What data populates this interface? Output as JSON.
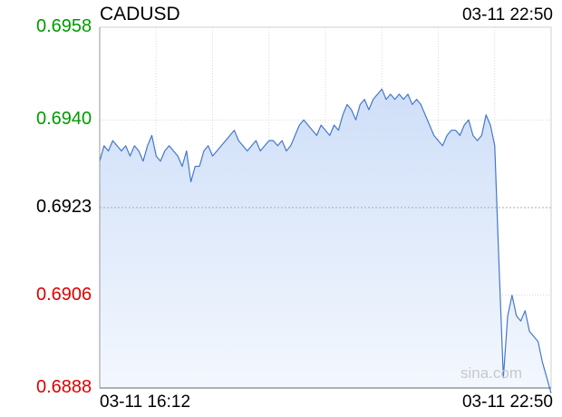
{
  "header": {
    "symbol": "CADUSD",
    "datetime": "03-11 22:50"
  },
  "watermark": "sina.com",
  "colors": {
    "up": "#009900",
    "down": "#dd0000",
    "neutral": "#000000",
    "line": "#4477cc",
    "fill_top": "#cfdff8",
    "fill_bottom": "#f4f8fe"
  },
  "chart_data": {
    "type": "area",
    "symbol": "CADUSD",
    "reference_price": 0.6923,
    "ylim": [
      0.6888,
      0.6958
    ],
    "y_ticks": [
      {
        "label": "0.6958",
        "value": 0.6958,
        "trend": "up"
      },
      {
        "label": "0.6940",
        "value": 0.694,
        "trend": "up"
      },
      {
        "label": "0.6923",
        "value": 0.6923,
        "trend": "neutral"
      },
      {
        "label": "0.6906",
        "value": 0.6906,
        "trend": "down"
      },
      {
        "label": "0.6888",
        "value": 0.6888,
        "trend": "down"
      }
    ],
    "x_ticks": [
      "03-11 16:12",
      "03-11 22:50"
    ],
    "grid": true,
    "series": [
      {
        "values": [
          0.6932,
          0.6935,
          0.6934,
          0.6936,
          0.6935,
          0.6934,
          0.6935,
          0.6933,
          0.6935,
          0.6934,
          0.6932,
          0.6935,
          0.6937,
          0.6933,
          0.6932,
          0.6934,
          0.6935,
          0.6934,
          0.6933,
          0.6931,
          0.6934,
          0.6928,
          0.6931,
          0.6931,
          0.6934,
          0.6935,
          0.6933,
          0.6934,
          0.6935,
          0.6936,
          0.6937,
          0.6938,
          0.6936,
          0.6935,
          0.6934,
          0.6935,
          0.6936,
          0.6934,
          0.6935,
          0.6936,
          0.6936,
          0.6935,
          0.6936,
          0.6934,
          0.6935,
          0.6937,
          0.6939,
          0.694,
          0.6939,
          0.6938,
          0.6937,
          0.6939,
          0.6938,
          0.6937,
          0.6939,
          0.6938,
          0.6941,
          0.6943,
          0.6942,
          0.694,
          0.6943,
          0.6944,
          0.6942,
          0.6944,
          0.6945,
          0.6946,
          0.6944,
          0.6945,
          0.6944,
          0.6945,
          0.6944,
          0.6945,
          0.6943,
          0.6944,
          0.6943,
          0.6941,
          0.6939,
          0.6937,
          0.6936,
          0.6935,
          0.6937,
          0.6938,
          0.6938,
          0.6937,
          0.6939,
          0.694,
          0.6937,
          0.6936,
          0.6937,
          0.6941,
          0.6939,
          0.6935,
          0.6912,
          0.689,
          0.6902,
          0.6906,
          0.6902,
          0.6901,
          0.6903,
          0.6899,
          0.6898,
          0.6897,
          0.6893,
          0.689,
          0.6887
        ]
      }
    ]
  }
}
